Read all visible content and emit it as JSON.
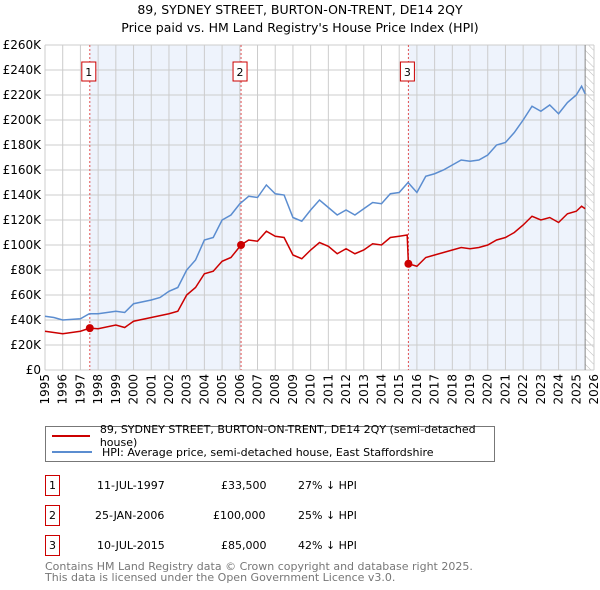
{
  "chart_data": {
    "type": "line",
    "title": "89, SYDNEY STREET, BURTON-ON-TRENT, DE14 2QY",
    "subtitle": "Price paid vs. HM Land Registry's House Price Index (HPI)",
    "xlim": [
      1995,
      2026
    ],
    "ylim": [
      0,
      260000
    ],
    "yticks": [
      {
        "v": 0,
        "label": "£0"
      },
      {
        "v": 20000,
        "label": "£20K"
      },
      {
        "v": 40000,
        "label": "£40K"
      },
      {
        "v": 60000,
        "label": "£60K"
      },
      {
        "v": 80000,
        "label": "£80K"
      },
      {
        "v": 100000,
        "label": "£100K"
      },
      {
        "v": 120000,
        "label": "£120K"
      },
      {
        "v": 140000,
        "label": "£140K"
      },
      {
        "v": 160000,
        "label": "£160K"
      },
      {
        "v": 180000,
        "label": "£180K"
      },
      {
        "v": 200000,
        "label": "£200K"
      },
      {
        "v": 220000,
        "label": "£220K"
      },
      {
        "v": 240000,
        "label": "£240K"
      },
      {
        "v": 260000,
        "label": "£260K"
      }
    ],
    "xticks": [
      "1995",
      "1996",
      "1997",
      "1998",
      "1999",
      "2000",
      "2001",
      "2002",
      "2003",
      "2004",
      "2005",
      "2006",
      "2007",
      "2008",
      "2009",
      "2010",
      "2011",
      "2012",
      "2013",
      "2014",
      "2015",
      "2016",
      "2017",
      "2018",
      "2019",
      "2020",
      "2021",
      "2022",
      "2023",
      "2024",
      "2025",
      "2026"
    ],
    "grid": true,
    "series": [
      {
        "name": "89, SYDNEY STREET, BURTON-ON-TRENT, DE14 2QY (semi-detached house)",
        "color": "#cc0000",
        "x": [
          1995,
          1996,
          1997,
          1997.53,
          1998,
          1999,
          1999.5,
          2000,
          2001,
          2002,
          2002.5,
          2003,
          2003.5,
          2004,
          2004.5,
          2005,
          2005.5,
          2006.07,
          2006.5,
          2007,
          2007.5,
          2008,
          2008.5,
          2009,
          2009.5,
          2010,
          2010.5,
          2011,
          2011.5,
          2012,
          2012.5,
          2013,
          2013.5,
          2014,
          2014.5,
          2015,
          2015.45,
          2015.52,
          2016,
          2016.5,
          2017,
          2017.5,
          2018,
          2018.5,
          2019,
          2019.5,
          2020,
          2020.5,
          2021,
          2021.5,
          2022,
          2022.5,
          2023,
          2023.5,
          2024,
          2024.5,
          2025,
          2025.3,
          2025.5
        ],
        "y": [
          31000,
          29000,
          31000,
          33500,
          33000,
          36000,
          34000,
          39000,
          42000,
          45000,
          47000,
          60000,
          66000,
          77000,
          79000,
          87000,
          90000,
          100000,
          104000,
          103000,
          111000,
          107000,
          106000,
          92000,
          89000,
          96000,
          102000,
          99000,
          93000,
          97000,
          93000,
          96000,
          101000,
          100000,
          106000,
          107000,
          108000,
          85000,
          83000,
          90000,
          92000,
          94000,
          96000,
          98000,
          97000,
          98000,
          100000,
          104000,
          106000,
          110000,
          116000,
          123000,
          120000,
          122000,
          118000,
          125000,
          127000,
          131000,
          129000
        ]
      },
      {
        "name": "HPI: Average price, semi-detached house, East Staffordshire",
        "color": "#5b8dd0",
        "x": [
          1995,
          1995.5,
          1996,
          1997,
          1997.5,
          1998,
          1999,
          1999.5,
          2000,
          2001,
          2001.5,
          2002,
          2002.5,
          2003,
          2003.5,
          2004,
          2004.5,
          2005,
          2005.5,
          2006,
          2006.5,
          2007,
          2007.5,
          2008,
          2008.5,
          2009,
          2009.5,
          2010,
          2010.5,
          2011,
          2011.5,
          2012,
          2012.5,
          2013,
          2013.5,
          2014,
          2014.5,
          2015,
          2015.5,
          2016,
          2016.5,
          2017,
          2017.5,
          2018,
          2018.5,
          2019,
          2019.5,
          2020,
          2020.5,
          2021,
          2021.5,
          2022,
          2022.5,
          2023,
          2023.5,
          2024,
          2024.5,
          2025,
          2025.3,
          2025.5
        ],
        "y": [
          43000,
          42000,
          40000,
          41000,
          45000,
          45000,
          47000,
          46000,
          53000,
          56000,
          58000,
          63000,
          66000,
          80000,
          88000,
          104000,
          106000,
          120000,
          124000,
          133000,
          139000,
          138000,
          148000,
          141000,
          140000,
          122000,
          119000,
          128000,
          136000,
          130000,
          124000,
          128000,
          124000,
          129000,
          134000,
          133000,
          141000,
          142000,
          150000,
          142000,
          155000,
          157000,
          160000,
          164000,
          168000,
          167000,
          168000,
          172000,
          180000,
          182000,
          190000,
          200000,
          211000,
          207000,
          212000,
          205000,
          214000,
          220000,
          227000,
          221000
        ]
      }
    ],
    "sales": [
      {
        "n": "1",
        "x": 1997.53,
        "y": 33500
      },
      {
        "n": "2",
        "x": 2006.07,
        "y": 100000
      },
      {
        "n": "3",
        "x": 2015.52,
        "y": 85000
      }
    ],
    "hatch_from": 2025.5
  },
  "legend": {
    "property": "89, SYDNEY STREET, BURTON-ON-TRENT, DE14 2QY (semi-detached house)",
    "hpi": "HPI: Average price, semi-detached house, East Staffordshire"
  },
  "transactions": [
    {
      "n": "1",
      "date": "11-JUL-1997",
      "price": "£33,500",
      "hpi": "27% ↓ HPI"
    },
    {
      "n": "2",
      "date": "25-JAN-2006",
      "price": "£100,000",
      "hpi": "25% ↓ HPI"
    },
    {
      "n": "3",
      "date": "10-JUL-2015",
      "price": "£85,000",
      "hpi": "42% ↓ HPI"
    }
  ],
  "footer": {
    "line1": "Contains HM Land Registry data © Crown copyright and database right 2025.",
    "line2": "This data is licensed under the Open Government Licence v3.0."
  }
}
